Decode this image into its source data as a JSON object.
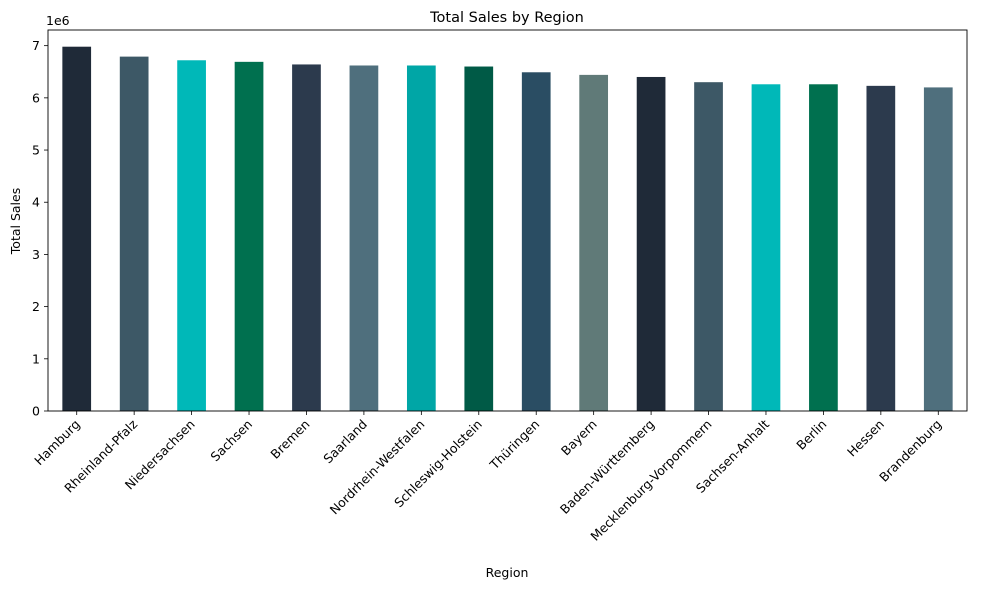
{
  "chart_data": {
    "type": "bar",
    "title": "Total Sales by Region",
    "xlabel": "Region",
    "ylabel": "Total Sales",
    "offset_label": "1e6",
    "ylim": [
      0,
      7300000
    ],
    "yticks": [
      0,
      1,
      2,
      3,
      4,
      5,
      6,
      7
    ],
    "grid": false,
    "categories": [
      "Hamburg",
      "Rheinland-Pfalz",
      "Niedersachsen",
      "Sachsen",
      "Bremen",
      "Saarland",
      "Nordrhein-Westfalen",
      "Schleswig-Holstein",
      "Thüringen",
      "Bayern",
      "Baden-Württemberg",
      "Mecklenburg-Vorpommern",
      "Sachsen-Anhalt",
      "Berlin",
      "Hessen",
      "Brandenburg"
    ],
    "values": [
      6980000,
      6790000,
      6720000,
      6690000,
      6640000,
      6620000,
      6620000,
      6600000,
      6490000,
      6440000,
      6400000,
      6300000,
      6260000,
      6260000,
      6230000,
      6200000
    ],
    "colors": [
      "#1f2a38",
      "#3d5866",
      "#00b8b8",
      "#00704f",
      "#2c3a4d",
      "#4f6f7d",
      "#00a6a6",
      "#005a46",
      "#2a4d63",
      "#607a78",
      "#1f2a38",
      "#3d5866",
      "#00b8b8",
      "#00704f",
      "#2c3a4d",
      "#4f6f7d"
    ]
  }
}
